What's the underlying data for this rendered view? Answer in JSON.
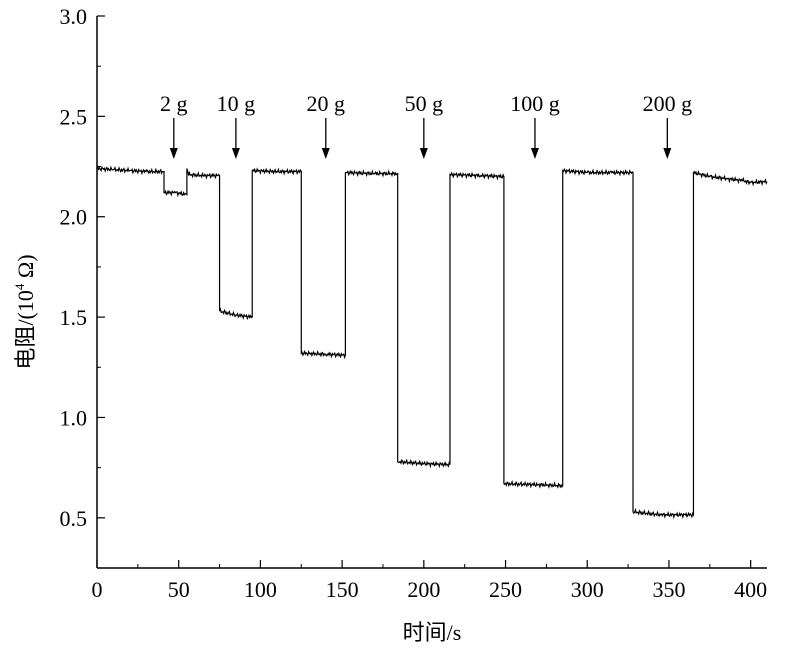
{
  "chart_data": {
    "type": "line",
    "title": "",
    "xlabel": "时间/s",
    "ylabel_prefix": "电阻/(10",
    "ylabel_exp": "4",
    "ylabel_suffix": " Ω)",
    "xlim": [
      0,
      410
    ],
    "ylim": [
      0.25,
      3.0
    ],
    "xticks": [
      0,
      50,
      100,
      150,
      200,
      250,
      300,
      350,
      400
    ],
    "xtick_labels": [
      "0",
      "50",
      "100",
      "150",
      "200",
      "250",
      "300",
      "350",
      "400"
    ],
    "yticks": [
      0.5,
      1.0,
      1.5,
      2.0,
      2.5,
      3.0
    ],
    "ytick_labels": [
      "0.5",
      "1.0",
      "1.5",
      "2.0",
      "2.5",
      "3.0"
    ],
    "grid": false,
    "series": [
      {
        "color": "#000000",
        "points": [
          [
            0,
            2.24
          ],
          [
            10,
            2.235
          ],
          [
            20,
            2.23
          ],
          [
            30,
            2.225
          ],
          [
            40,
            2.225
          ],
          [
            41,
            2.225
          ],
          [
            41,
            2.12
          ],
          [
            48,
            2.12
          ],
          [
            55,
            2.11
          ],
          [
            55,
            2.24
          ],
          [
            56,
            2.21
          ],
          [
            65,
            2.205
          ],
          [
            75,
            2.205
          ],
          [
            75,
            1.53
          ],
          [
            85,
            1.51
          ],
          [
            95,
            1.5
          ],
          [
            95,
            2.23
          ],
          [
            110,
            2.225
          ],
          [
            125,
            2.225
          ],
          [
            125,
            1.32
          ],
          [
            140,
            1.315
          ],
          [
            152,
            1.31
          ],
          [
            152,
            2.22
          ],
          [
            170,
            2.215
          ],
          [
            184,
            2.215
          ],
          [
            184,
            0.78
          ],
          [
            200,
            0.77
          ],
          [
            216,
            0.765
          ],
          [
            216,
            2.21
          ],
          [
            235,
            2.205
          ],
          [
            249,
            2.2
          ],
          [
            249,
            0.67
          ],
          [
            270,
            0.665
          ],
          [
            285,
            0.66
          ],
          [
            285,
            2.23
          ],
          [
            300,
            2.22
          ],
          [
            315,
            2.22
          ],
          [
            328,
            2.22
          ],
          [
            328,
            0.53
          ],
          [
            345,
            0.515
          ],
          [
            365,
            0.515
          ],
          [
            365,
            2.22
          ],
          [
            375,
            2.2
          ],
          [
            385,
            2.19
          ],
          [
            395,
            2.18
          ],
          [
            400,
            2.17
          ],
          [
            410,
            2.175
          ]
        ]
      }
    ],
    "annotations": [
      {
        "text": "2 g",
        "x": 47
      },
      {
        "text": "10 g",
        "x": 85
      },
      {
        "text": "20 g",
        "x": 140
      },
      {
        "text": "50 g",
        "x": 200
      },
      {
        "text": "100 g",
        "x": 268
      },
      {
        "text": "200 g",
        "x": 349
      }
    ]
  }
}
